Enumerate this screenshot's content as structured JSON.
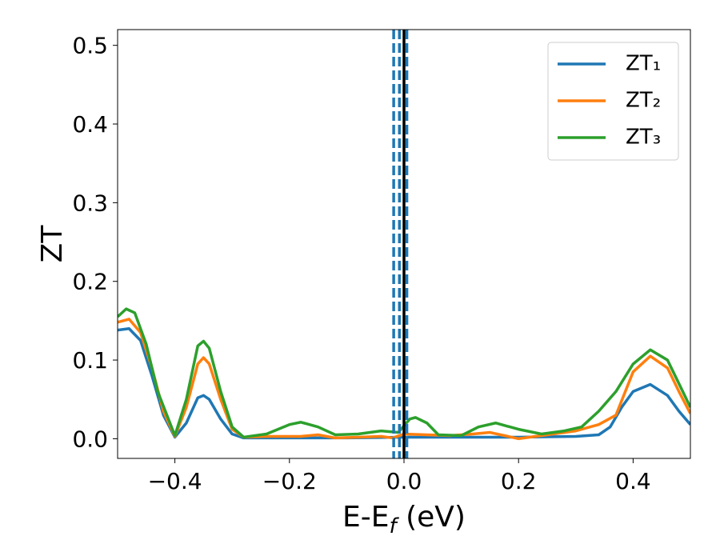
{
  "chart_data": {
    "type": "line",
    "xlabel": [
      "E-E",
      "f",
      " (eV)"
    ],
    "ylabel": "ZT",
    "xlim": [
      -0.5,
      0.5
    ],
    "ylim": [
      -0.025,
      0.52
    ],
    "xticks": [
      {
        "value": -0.4,
        "label": "−0.4"
      },
      {
        "value": -0.2,
        "label": "−0.2"
      },
      {
        "value": 0,
        "label": "0.0"
      },
      0.2,
      0.4
    ],
    "yticks": [
      {
        "value": 0,
        "label": "0.0"
      },
      0.1,
      0.2,
      0.3,
      0.4,
      0.5
    ],
    "legend": "upper right",
    "vlines": [
      {
        "x": -0.018,
        "color": "#1f77b4",
        "style": "dashed"
      },
      {
        "x": -0.008,
        "color": "#1f77b4",
        "style": "dashed"
      },
      {
        "x": 0.005,
        "color": "#1f77b4",
        "style": "dashed"
      },
      {
        "x": 0.0,
        "color": "#000000",
        "style": "solid"
      }
    ],
    "series": [
      {
        "name": "ZT₁",
        "color": "#1f77b4",
        "x": [
          -0.5,
          -0.48,
          -0.46,
          -0.44,
          -0.42,
          -0.4,
          -0.38,
          -0.36,
          -0.35,
          -0.34,
          -0.32,
          -0.3,
          -0.28,
          -0.2,
          -0.1,
          0.0,
          0.1,
          0.2,
          0.3,
          0.34,
          0.36,
          0.38,
          0.4,
          0.43,
          0.46,
          0.48,
          0.5
        ],
        "values": [
          0.138,
          0.14,
          0.125,
          0.08,
          0.03,
          0.002,
          0.02,
          0.052,
          0.055,
          0.05,
          0.025,
          0.006,
          0.001,
          0.001,
          0.001,
          0.002,
          0.002,
          0.002,
          0.003,
          0.005,
          0.015,
          0.04,
          0.06,
          0.069,
          0.055,
          0.035,
          0.018
        ]
      },
      {
        "name": "ZT₂",
        "color": "#ff7f0e",
        "x": [
          -0.5,
          -0.48,
          -0.46,
          -0.44,
          -0.42,
          -0.4,
          -0.38,
          -0.36,
          -0.35,
          -0.34,
          -0.32,
          -0.3,
          -0.28,
          -0.24,
          -0.18,
          -0.15,
          -0.12,
          -0.08,
          -0.04,
          -0.02,
          0.0,
          0.04,
          0.08,
          0.12,
          0.15,
          0.2,
          0.25,
          0.3,
          0.34,
          0.37,
          0.4,
          0.43,
          0.46,
          0.48,
          0.5
        ],
        "values": [
          0.148,
          0.152,
          0.135,
          0.09,
          0.035,
          0.003,
          0.04,
          0.095,
          0.103,
          0.095,
          0.05,
          0.012,
          0.002,
          0.003,
          0.003,
          0.005,
          0.001,
          0.002,
          0.003,
          0.001,
          0.006,
          0.005,
          0.004,
          0.006,
          0.008,
          0.0,
          0.005,
          0.01,
          0.018,
          0.03,
          0.085,
          0.105,
          0.09,
          0.06,
          0.032
        ]
      },
      {
        "name": "ZT₃",
        "color": "#2ca02c",
        "x": [
          -0.5,
          -0.485,
          -0.47,
          -0.45,
          -0.43,
          -0.4,
          -0.38,
          -0.36,
          -0.35,
          -0.34,
          -0.32,
          -0.3,
          -0.28,
          -0.24,
          -0.2,
          -0.18,
          -0.15,
          -0.12,
          -0.08,
          -0.04,
          -0.01,
          0.01,
          0.02,
          0.04,
          0.06,
          0.1,
          0.13,
          0.16,
          0.2,
          0.24,
          0.28,
          0.31,
          0.34,
          0.37,
          0.4,
          0.43,
          0.46,
          0.48,
          0.5
        ],
        "values": [
          0.155,
          0.165,
          0.16,
          0.12,
          0.06,
          0.004,
          0.05,
          0.118,
          0.124,
          0.115,
          0.06,
          0.015,
          0.002,
          0.006,
          0.018,
          0.021,
          0.015,
          0.005,
          0.006,
          0.01,
          0.008,
          0.025,
          0.027,
          0.02,
          0.005,
          0.004,
          0.015,
          0.02,
          0.012,
          0.006,
          0.01,
          0.015,
          0.035,
          0.06,
          0.095,
          0.113,
          0.1,
          0.07,
          0.04
        ]
      }
    ]
  }
}
